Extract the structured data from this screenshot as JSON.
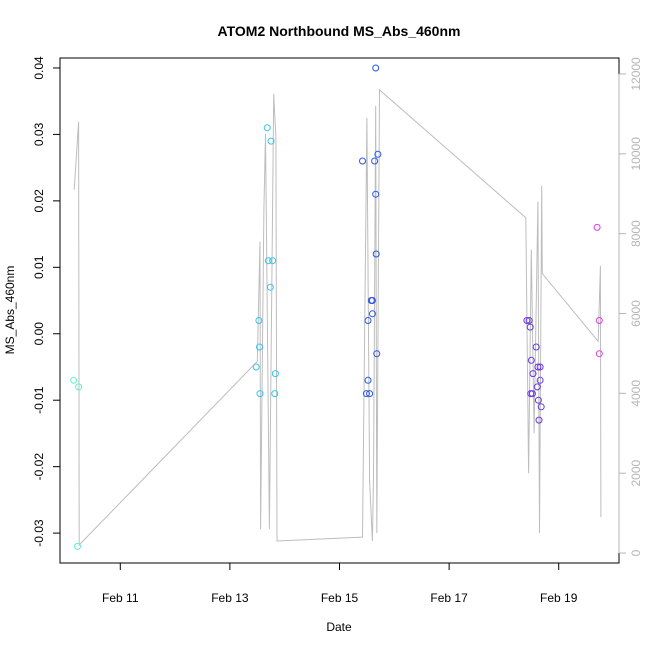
{
  "chart_data": {
    "type": "scatter",
    "title": "ATOM2 Northbound MS_Abs_460nm",
    "xlabel": "Date",
    "ylabel": "MS_Abs_460nm",
    "x_ticks": [
      "Feb 11",
      "Feb 13",
      "Feb 15",
      "Feb 17",
      "Feb 19"
    ],
    "x_tick_days": [
      11,
      13,
      15,
      17,
      19
    ],
    "xlim": [
      9.9,
      20.1
    ],
    "ylim": [
      -0.0345,
      0.0415
    ],
    "y_ticks": [
      -0.03,
      -0.02,
      -0.01,
      0.0,
      0.01,
      0.02,
      0.03,
      0.04
    ],
    "y_tick_labels": [
      "-0.03",
      "-0.02",
      "-0.01",
      "0.00",
      "0.01",
      "0.02",
      "0.03",
      "0.04"
    ],
    "y2lim": [
      -250,
      12400
    ],
    "y2_ticks": [
      0,
      2000,
      4000,
      6000,
      8000,
      10000,
      12000
    ],
    "y2_tick_labels": [
      "0",
      "2000",
      "4000",
      "6000",
      "8000",
      "10000",
      "12000"
    ],
    "grid": false,
    "series": [
      {
        "color": "#5ef0c8",
        "points": [
          {
            "x": 10.15,
            "y": -0.007
          },
          {
            "x": 10.24,
            "y": -0.008
          },
          {
            "x": 10.22,
            "y": -0.032
          }
        ]
      },
      {
        "color": "#33c6e8",
        "points": [
          {
            "x": 13.68,
            "y": 0.031
          },
          {
            "x": 13.75,
            "y": 0.029
          },
          {
            "x": 13.7,
            "y": 0.011
          },
          {
            "x": 13.78,
            "y": 0.011
          },
          {
            "x": 13.74,
            "y": 0.007
          },
          {
            "x": 13.53,
            "y": 0.002
          },
          {
            "x": 13.54,
            "y": -0.002
          },
          {
            "x": 13.48,
            "y": -0.005
          },
          {
            "x": 13.83,
            "y": -0.006
          },
          {
            "x": 13.55,
            "y": -0.009
          },
          {
            "x": 13.82,
            "y": -0.009
          }
        ]
      },
      {
        "color": "#2a55e8",
        "points": [
          {
            "x": 15.66,
            "y": 0.04
          },
          {
            "x": 15.42,
            "y": 0.026
          },
          {
            "x": 15.64,
            "y": 0.026
          },
          {
            "x": 15.7,
            "y": 0.027
          },
          {
            "x": 15.66,
            "y": 0.021
          },
          {
            "x": 15.67,
            "y": 0.012
          },
          {
            "x": 15.58,
            "y": 0.005
          },
          {
            "x": 15.6,
            "y": 0.005
          },
          {
            "x": 15.6,
            "y": 0.003
          },
          {
            "x": 15.52,
            "y": 0.002
          },
          {
            "x": 15.68,
            "y": -0.003
          },
          {
            "x": 15.52,
            "y": -0.007
          },
          {
            "x": 15.49,
            "y": -0.009
          },
          {
            "x": 15.55,
            "y": -0.009
          }
        ]
      },
      {
        "color": "#6a38e0",
        "points": [
          {
            "x": 18.42,
            "y": 0.002
          },
          {
            "x": 18.46,
            "y": 0.002
          },
          {
            "x": 18.48,
            "y": 0.001
          },
          {
            "x": 18.59,
            "y": -0.002
          },
          {
            "x": 18.5,
            "y": -0.004
          },
          {
            "x": 18.62,
            "y": -0.005
          },
          {
            "x": 18.66,
            "y": -0.005
          },
          {
            "x": 18.53,
            "y": -0.006
          },
          {
            "x": 18.66,
            "y": -0.007
          },
          {
            "x": 18.61,
            "y": -0.008
          },
          {
            "x": 18.49,
            "y": -0.009
          },
          {
            "x": 18.52,
            "y": -0.009
          },
          {
            "x": 18.63,
            "y": -0.01
          },
          {
            "x": 18.68,
            "y": -0.011
          },
          {
            "x": 18.64,
            "y": -0.013
          }
        ]
      },
      {
        "color": "#e33ce8",
        "points": [
          {
            "x": 19.7,
            "y": 0.016
          },
          {
            "x": 19.74,
            "y": 0.002
          },
          {
            "x": 19.74,
            "y": -0.003
          }
        ]
      }
    ],
    "secondary_line": {
      "color": "#bdbdbd",
      "points": [
        {
          "x": 10.16,
          "y": 9100
        },
        {
          "x": 10.24,
          "y": 10800
        },
        {
          "x": 10.25,
          "y": 200
        },
        {
          "x": 13.5,
          "y": 4800
        },
        {
          "x": 13.55,
          "y": 7800
        },
        {
          "x": 13.56,
          "y": 600
        },
        {
          "x": 13.62,
          "y": 8600
        },
        {
          "x": 13.65,
          "y": 10500
        },
        {
          "x": 13.72,
          "y": 600
        },
        {
          "x": 13.8,
          "y": 11500
        },
        {
          "x": 13.84,
          "y": 10400
        },
        {
          "x": 13.86,
          "y": 300
        },
        {
          "x": 15.42,
          "y": 400
        },
        {
          "x": 15.5,
          "y": 10900
        },
        {
          "x": 15.55,
          "y": 1800
        },
        {
          "x": 15.6,
          "y": 300
        },
        {
          "x": 15.62,
          "y": 1900
        },
        {
          "x": 15.66,
          "y": 11200
        },
        {
          "x": 15.68,
          "y": 500
        },
        {
          "x": 15.73,
          "y": 11600
        },
        {
          "x": 18.4,
          "y": 8400
        },
        {
          "x": 18.45,
          "y": 2000
        },
        {
          "x": 18.5,
          "y": 7600
        },
        {
          "x": 18.55,
          "y": 3000
        },
        {
          "x": 18.62,
          "y": 8800
        },
        {
          "x": 18.65,
          "y": 500
        },
        {
          "x": 18.69,
          "y": 9200
        },
        {
          "x": 18.7,
          "y": 7000
        },
        {
          "x": 19.72,
          "y": 5300
        },
        {
          "x": 19.76,
          "y": 7200
        },
        {
          "x": 19.77,
          "y": 900
        }
      ]
    }
  }
}
